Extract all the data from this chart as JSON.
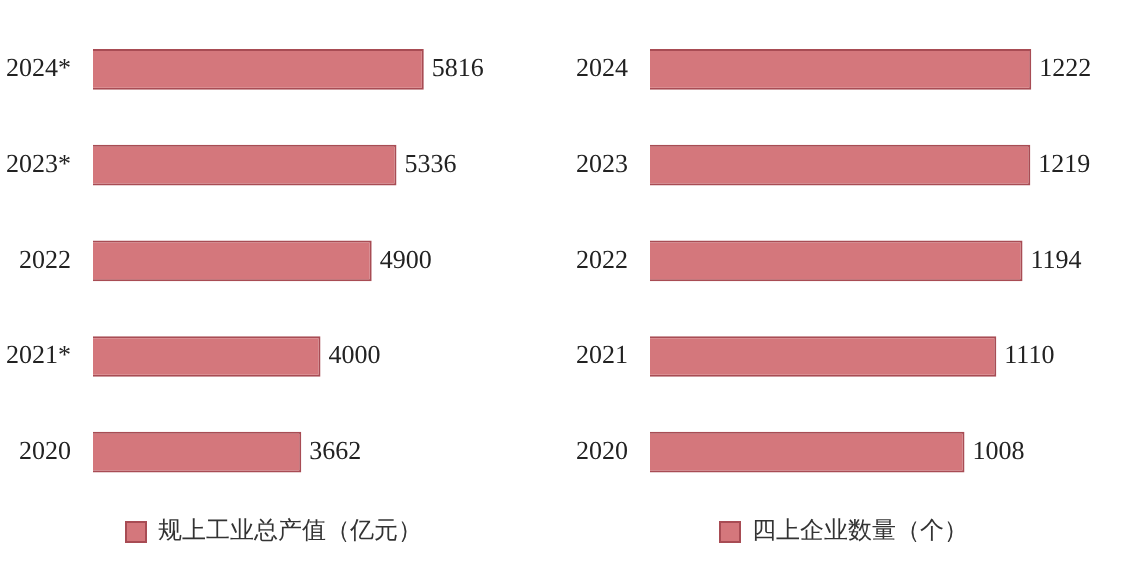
{
  "chart_data": [
    {
      "type": "bar",
      "orientation": "horizontal",
      "categories": [
        "2024*",
        "2023*",
        "2022",
        "2021*",
        "2020"
      ],
      "series": [
        {
          "name": "规上工业总产值（亿元）",
          "color": "#d4777c",
          "values": [
            5816,
            5336,
            4900,
            4000,
            3662
          ]
        }
      ],
      "data_labels": true,
      "legend": "bottom"
    },
    {
      "type": "bar",
      "orientation": "horizontal",
      "categories": [
        "2024",
        "2023",
        "2022",
        "2021",
        "2020"
      ],
      "series": [
        {
          "name": "四上企业数量（个）",
          "color": "#d4777c",
          "values": [
            1222,
            1219,
            1194,
            1110,
            1008
          ]
        }
      ],
      "data_labels": true,
      "legend": "bottom"
    }
  ]
}
